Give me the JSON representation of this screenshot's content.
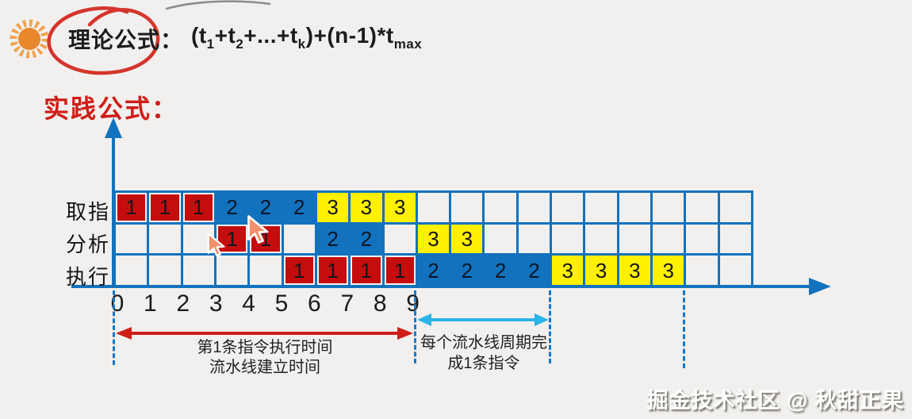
{
  "colors": {
    "bg": "#f1f0ee",
    "blue": "#1272be",
    "redcell": "#c60d0d",
    "yellow": "#fff100",
    "gapwhite": "#f5f4f2",
    "redaccent": "#cf1d18",
    "cyan": "#2ab4e8",
    "dashblue": "#1577c8",
    "ink": "#1c1c1c",
    "wm": "#ffffff"
  },
  "header": {
    "title_label": "理论公式：",
    "formula": {
      "p0": "(t",
      "s0": "1",
      "p1": "+t",
      "s1": "2",
      "p2": "+...+t",
      "s2": "k",
      "p3": ")+(n-1)*t",
      "s3": "max"
    }
  },
  "subtitle": {
    "label": "实践公式："
  },
  "diagram": {
    "rows": [
      {
        "label": "取指",
        "cells": [
          {
            "v": "1",
            "c": "red"
          },
          {
            "v": "1",
            "c": "red"
          },
          {
            "v": "1",
            "c": "red"
          },
          {
            "v": "2",
            "c": "blue"
          },
          {
            "v": "2",
            "c": "blue"
          },
          {
            "v": "2",
            "c": "blue"
          },
          {
            "v": "3",
            "c": "yellow"
          },
          {
            "v": "3",
            "c": "yellow"
          },
          {
            "v": "3",
            "c": "yellow"
          },
          null,
          null,
          null,
          null,
          null,
          null,
          null,
          null,
          null,
          null
        ]
      },
      {
        "label": "分析",
        "cells": [
          null,
          null,
          null,
          {
            "v": "1",
            "c": "red"
          },
          {
            "v": "1",
            "c": "red"
          },
          null,
          {
            "v": "2",
            "c": "blue"
          },
          {
            "v": "2",
            "c": "blue"
          },
          null,
          {
            "v": "3",
            "c": "yellow"
          },
          {
            "v": "3",
            "c": "yellow"
          },
          null,
          null,
          null,
          null,
          null,
          null,
          null,
          null
        ]
      },
      {
        "label": "执行",
        "cells": [
          null,
          null,
          null,
          null,
          null,
          {
            "v": "1",
            "c": "red"
          },
          {
            "v": "1",
            "c": "red"
          },
          {
            "v": "1",
            "c": "red"
          },
          {
            "v": "1",
            "c": "red"
          },
          {
            "v": "2",
            "c": "blue"
          },
          {
            "v": "2",
            "c": "blue"
          },
          {
            "v": "2",
            "c": "blue"
          },
          {
            "v": "2",
            "c": "blue"
          },
          {
            "v": "3",
            "c": "yellow"
          },
          {
            "v": "3",
            "c": "yellow"
          },
          {
            "v": "3",
            "c": "yellow"
          },
          {
            "v": "3",
            "c": "yellow"
          },
          null,
          null
        ]
      }
    ],
    "axis_ticks": [
      "0",
      "1",
      "2",
      "3",
      "4",
      "5",
      "6",
      "7",
      "8",
      "9"
    ],
    "annotations": {
      "first_instr_line1": "第1条指令执行时间",
      "first_instr_line2": "流水线建立时间",
      "cycle_line1": "每个流水线周期完",
      "cycle_line2": "成1条指令"
    }
  },
  "watermark": {
    "text": "掘金技术社区 @ 秋甜正果"
  }
}
